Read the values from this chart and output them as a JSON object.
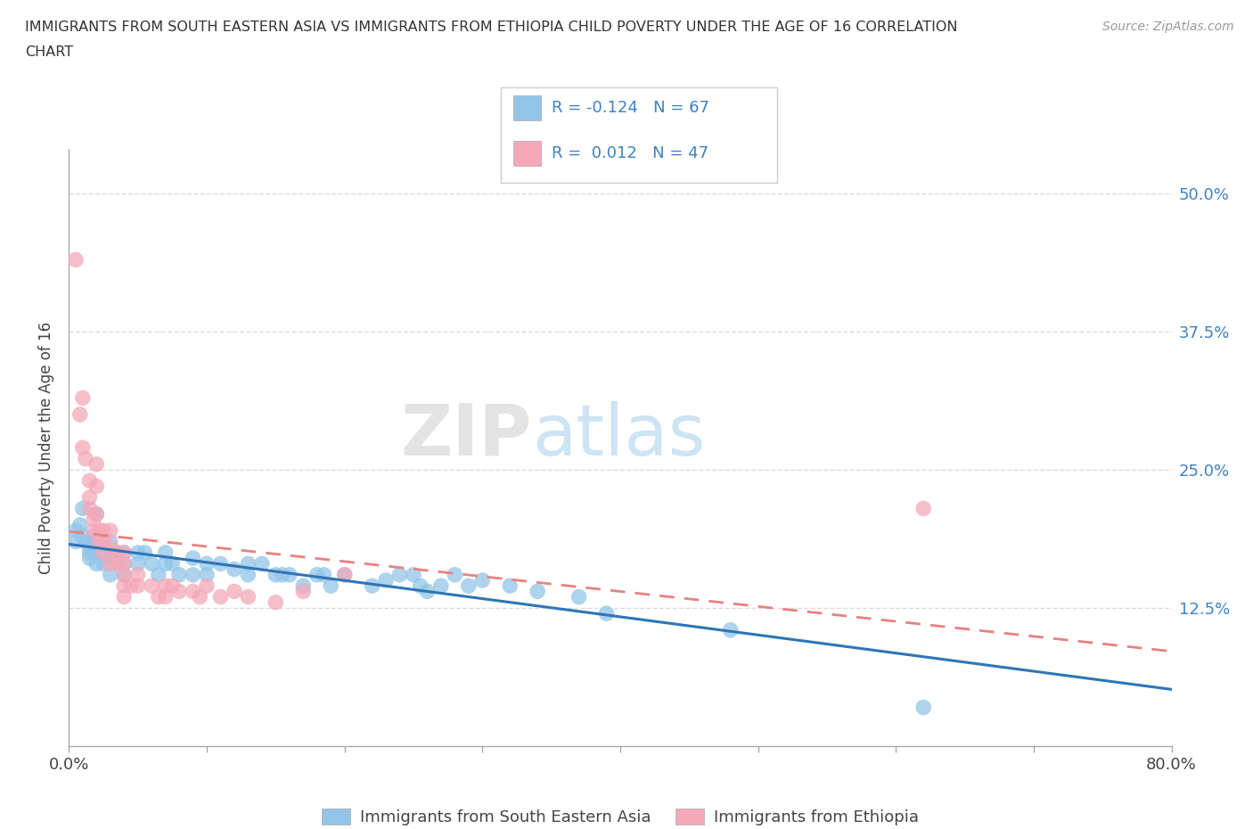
{
  "title_line1": "IMMIGRANTS FROM SOUTH EASTERN ASIA VS IMMIGRANTS FROM ETHIOPIA CHILD POVERTY UNDER THE AGE OF 16 CORRELATION",
  "title_line2": "CHART",
  "source": "Source: ZipAtlas.com",
  "ylabel": "Child Poverty Under the Age of 16",
  "xlim": [
    0.0,
    0.8
  ],
  "ylim": [
    0.0,
    0.54
  ],
  "xticks": [
    0.0,
    0.1,
    0.2,
    0.3,
    0.4,
    0.5,
    0.6,
    0.7,
    0.8
  ],
  "xtick_labels_show": [
    "0.0%",
    "",
    "",
    "",
    "",
    "",
    "",
    "",
    "80.0%"
  ],
  "yticks": [
    0.125,
    0.25,
    0.375,
    0.5
  ],
  "ytick_labels": [
    "12.5%",
    "25.0%",
    "37.5%",
    "50.0%"
  ],
  "watermark_zip": "ZIP",
  "watermark_atlas": "atlas",
  "legend_blue_label": "Immigrants from South Eastern Asia",
  "legend_pink_label": "Immigrants from Ethiopia",
  "R_blue": "-0.124",
  "N_blue": "67",
  "R_pink": "0.012",
  "N_pink": "47",
  "blue_scatter_color": "#92c5e8",
  "pink_scatter_color": "#f4a8b8",
  "trendline_blue_color": "#2e75b6",
  "trendline_pink_color": "#e88080",
  "blue_scatter": [
    [
      0.005,
      0.195
    ],
    [
      0.005,
      0.185
    ],
    [
      0.008,
      0.2
    ],
    [
      0.01,
      0.215
    ],
    [
      0.01,
      0.19
    ],
    [
      0.012,
      0.185
    ],
    [
      0.015,
      0.18
    ],
    [
      0.015,
      0.175
    ],
    [
      0.015,
      0.17
    ],
    [
      0.018,
      0.19
    ],
    [
      0.018,
      0.175
    ],
    [
      0.02,
      0.21
    ],
    [
      0.02,
      0.185
    ],
    [
      0.02,
      0.165
    ],
    [
      0.022,
      0.18
    ],
    [
      0.025,
      0.175
    ],
    [
      0.025,
      0.165
    ],
    [
      0.03,
      0.185
    ],
    [
      0.03,
      0.17
    ],
    [
      0.03,
      0.155
    ],
    [
      0.035,
      0.175
    ],
    [
      0.035,
      0.165
    ],
    [
      0.04,
      0.175
    ],
    [
      0.04,
      0.165
    ],
    [
      0.04,
      0.155
    ],
    [
      0.05,
      0.175
    ],
    [
      0.05,
      0.165
    ],
    [
      0.055,
      0.175
    ],
    [
      0.06,
      0.165
    ],
    [
      0.065,
      0.155
    ],
    [
      0.07,
      0.175
    ],
    [
      0.07,
      0.165
    ],
    [
      0.075,
      0.165
    ],
    [
      0.08,
      0.155
    ],
    [
      0.09,
      0.17
    ],
    [
      0.09,
      0.155
    ],
    [
      0.1,
      0.165
    ],
    [
      0.1,
      0.155
    ],
    [
      0.11,
      0.165
    ],
    [
      0.12,
      0.16
    ],
    [
      0.13,
      0.165
    ],
    [
      0.13,
      0.155
    ],
    [
      0.14,
      0.165
    ],
    [
      0.15,
      0.155
    ],
    [
      0.155,
      0.155
    ],
    [
      0.16,
      0.155
    ],
    [
      0.17,
      0.145
    ],
    [
      0.18,
      0.155
    ],
    [
      0.185,
      0.155
    ],
    [
      0.19,
      0.145
    ],
    [
      0.2,
      0.155
    ],
    [
      0.22,
      0.145
    ],
    [
      0.23,
      0.15
    ],
    [
      0.24,
      0.155
    ],
    [
      0.25,
      0.155
    ],
    [
      0.255,
      0.145
    ],
    [
      0.26,
      0.14
    ],
    [
      0.27,
      0.145
    ],
    [
      0.28,
      0.155
    ],
    [
      0.29,
      0.145
    ],
    [
      0.3,
      0.15
    ],
    [
      0.32,
      0.145
    ],
    [
      0.34,
      0.14
    ],
    [
      0.37,
      0.135
    ],
    [
      0.39,
      0.12
    ],
    [
      0.48,
      0.105
    ],
    [
      0.62,
      0.035
    ]
  ],
  "pink_scatter": [
    [
      0.005,
      0.44
    ],
    [
      0.008,
      0.3
    ],
    [
      0.01,
      0.315
    ],
    [
      0.01,
      0.27
    ],
    [
      0.012,
      0.26
    ],
    [
      0.015,
      0.24
    ],
    [
      0.015,
      0.225
    ],
    [
      0.015,
      0.215
    ],
    [
      0.018,
      0.205
    ],
    [
      0.018,
      0.195
    ],
    [
      0.02,
      0.255
    ],
    [
      0.02,
      0.235
    ],
    [
      0.02,
      0.21
    ],
    [
      0.022,
      0.195
    ],
    [
      0.022,
      0.185
    ],
    [
      0.025,
      0.195
    ],
    [
      0.025,
      0.185
    ],
    [
      0.025,
      0.175
    ],
    [
      0.03,
      0.195
    ],
    [
      0.03,
      0.18
    ],
    [
      0.03,
      0.165
    ],
    [
      0.035,
      0.175
    ],
    [
      0.035,
      0.165
    ],
    [
      0.04,
      0.175
    ],
    [
      0.04,
      0.165
    ],
    [
      0.04,
      0.155
    ],
    [
      0.04,
      0.145
    ],
    [
      0.04,
      0.135
    ],
    [
      0.045,
      0.145
    ],
    [
      0.05,
      0.155
    ],
    [
      0.05,
      0.145
    ],
    [
      0.06,
      0.145
    ],
    [
      0.065,
      0.135
    ],
    [
      0.07,
      0.145
    ],
    [
      0.07,
      0.135
    ],
    [
      0.075,
      0.145
    ],
    [
      0.08,
      0.14
    ],
    [
      0.09,
      0.14
    ],
    [
      0.095,
      0.135
    ],
    [
      0.1,
      0.145
    ],
    [
      0.11,
      0.135
    ],
    [
      0.12,
      0.14
    ],
    [
      0.13,
      0.135
    ],
    [
      0.15,
      0.13
    ],
    [
      0.17,
      0.14
    ],
    [
      0.2,
      0.155
    ],
    [
      0.62,
      0.215
    ]
  ],
  "grid_color": "#dddddd",
  "bg_color": "#ffffff",
  "text_color": "#444444",
  "tick_color": "#3b82c4"
}
